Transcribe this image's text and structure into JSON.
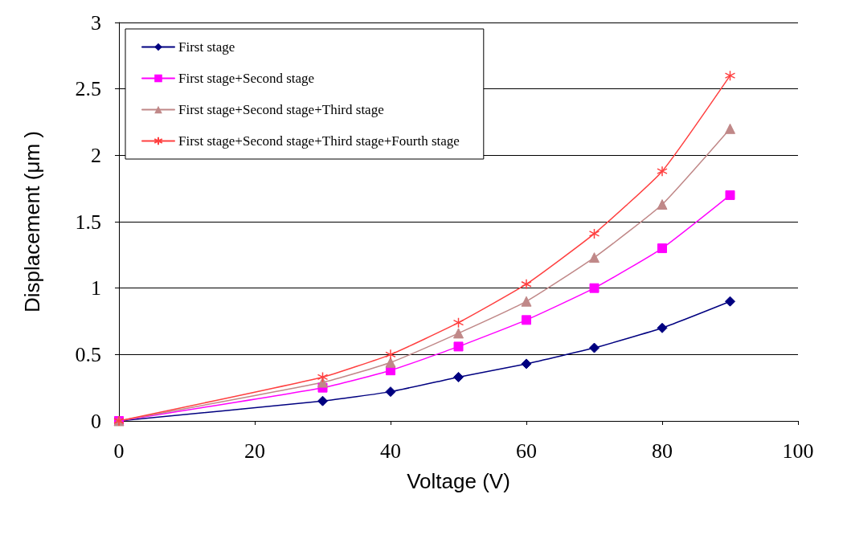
{
  "chart_data": {
    "type": "line",
    "xlabel": "Voltage (V)",
    "ylabel": "Displacement (μm )",
    "x": [
      0,
      30,
      40,
      50,
      60,
      70,
      80,
      90
    ],
    "series": [
      {
        "name": "First stage",
        "color": "#000080",
        "marker": "diamond",
        "values": [
          0,
          0.15,
          0.22,
          0.33,
          0.43,
          0.55,
          0.7,
          0.9
        ]
      },
      {
        "name": "First stage+Second stage",
        "color": "#ff00ff",
        "marker": "square",
        "values": [
          0,
          0.25,
          0.38,
          0.56,
          0.76,
          1.0,
          1.3,
          1.7
        ]
      },
      {
        "name": "First stage+Second stage+Third stage",
        "color": "#c08888",
        "marker": "triangle",
        "values": [
          0,
          0.29,
          0.44,
          0.66,
          0.9,
          1.23,
          1.63,
          2.2
        ]
      },
      {
        "name": "First stage+Second stage+Third stage+Fourth stage",
        "color": "#ff4040",
        "marker": "cross",
        "values": [
          0,
          0.33,
          0.5,
          0.74,
          1.03,
          1.41,
          1.88,
          2.6
        ]
      }
    ],
    "xlim": [
      0,
      100
    ],
    "xticks": [
      0,
      20,
      40,
      60,
      80,
      100
    ],
    "ylim": [
      0,
      3
    ],
    "yticks": [
      0,
      0.5,
      1,
      1.5,
      2,
      2.5,
      3
    ],
    "grid": "y",
    "legend": "top left",
    "line_style": "solid"
  }
}
